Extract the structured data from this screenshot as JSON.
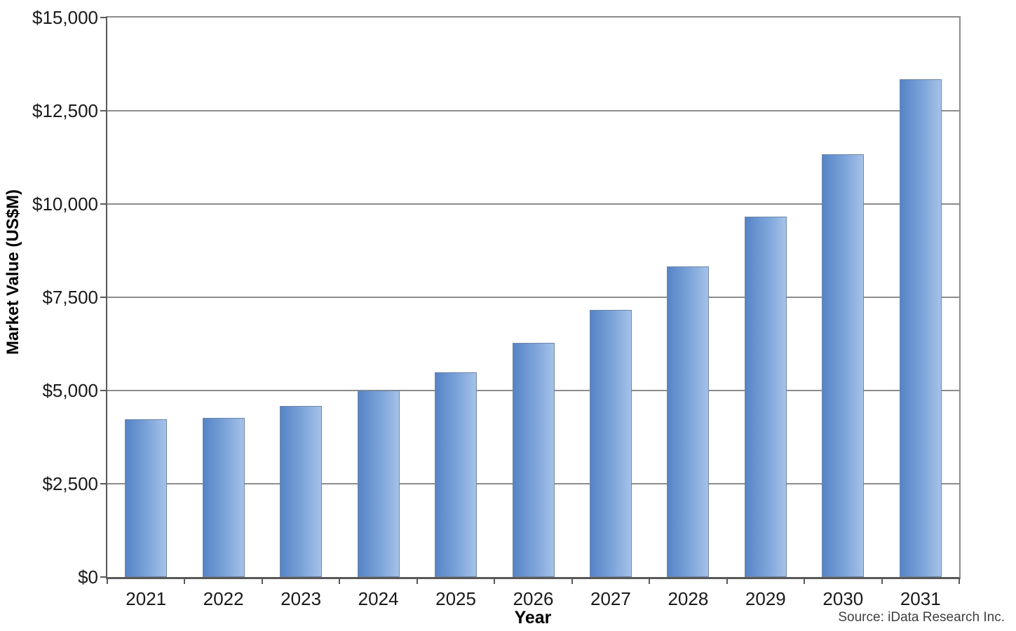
{
  "chart_data": {
    "type": "bar",
    "title": "",
    "xlabel": "Year",
    "ylabel": "Market Value (US$M)",
    "categories": [
      "2021",
      "2022",
      "2023",
      "2024",
      "2025",
      "2026",
      "2027",
      "2028",
      "2029",
      "2030",
      "2031"
    ],
    "values": [
      4230,
      4270,
      4590,
      5000,
      5490,
      6280,
      7160,
      8330,
      9660,
      11330,
      13350
    ],
    "ylim": [
      0,
      15000
    ],
    "ytick_interval": 2500,
    "yticks": [
      {
        "value": 0,
        "label": "$0"
      },
      {
        "value": 2500,
        "label": "$2,500"
      },
      {
        "value": 5000,
        "label": "$5,000"
      },
      {
        "value": 7500,
        "label": "$7,500"
      },
      {
        "value": 10000,
        "label": "$10,000"
      },
      {
        "value": 12500,
        "label": "$12,500"
      },
      {
        "value": 15000,
        "label": "$15,000"
      }
    ],
    "grid": "horizontal",
    "legend_position": "none",
    "colors": {
      "bar_gradient_left": "#5584c6",
      "bar_gradient_right": "#a5c2e8",
      "bar_border": "#6f87a6",
      "gridline": "#8c8c8c",
      "axis": "#595959",
      "text": "#1a1a1a"
    }
  },
  "source_note": "Source: iData Research Inc."
}
